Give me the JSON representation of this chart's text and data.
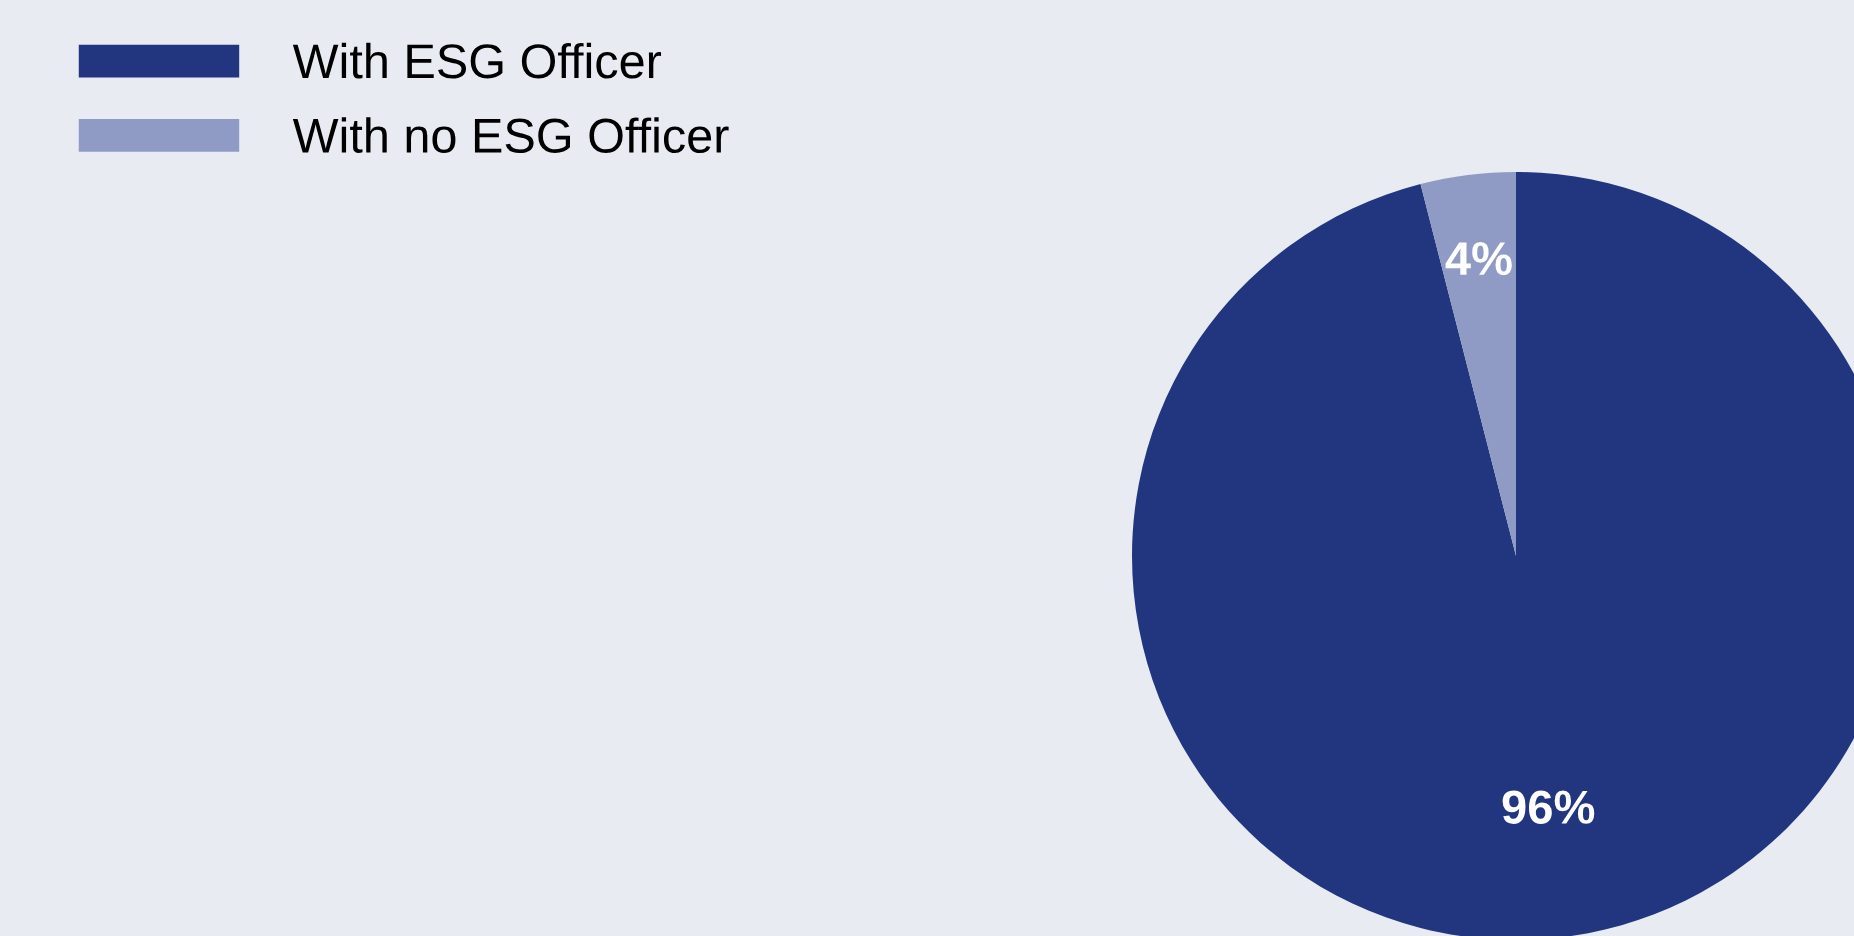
{
  "chart_data": {
    "type": "pie",
    "categories": [
      "With ESG Officer",
      "With no ESG Officer"
    ],
    "values": [
      96,
      4
    ],
    "colors": [
      "#22367f",
      "#8f9bc4"
    ],
    "value_labels": [
      "96%",
      "4%"
    ],
    "legend": "top left"
  }
}
